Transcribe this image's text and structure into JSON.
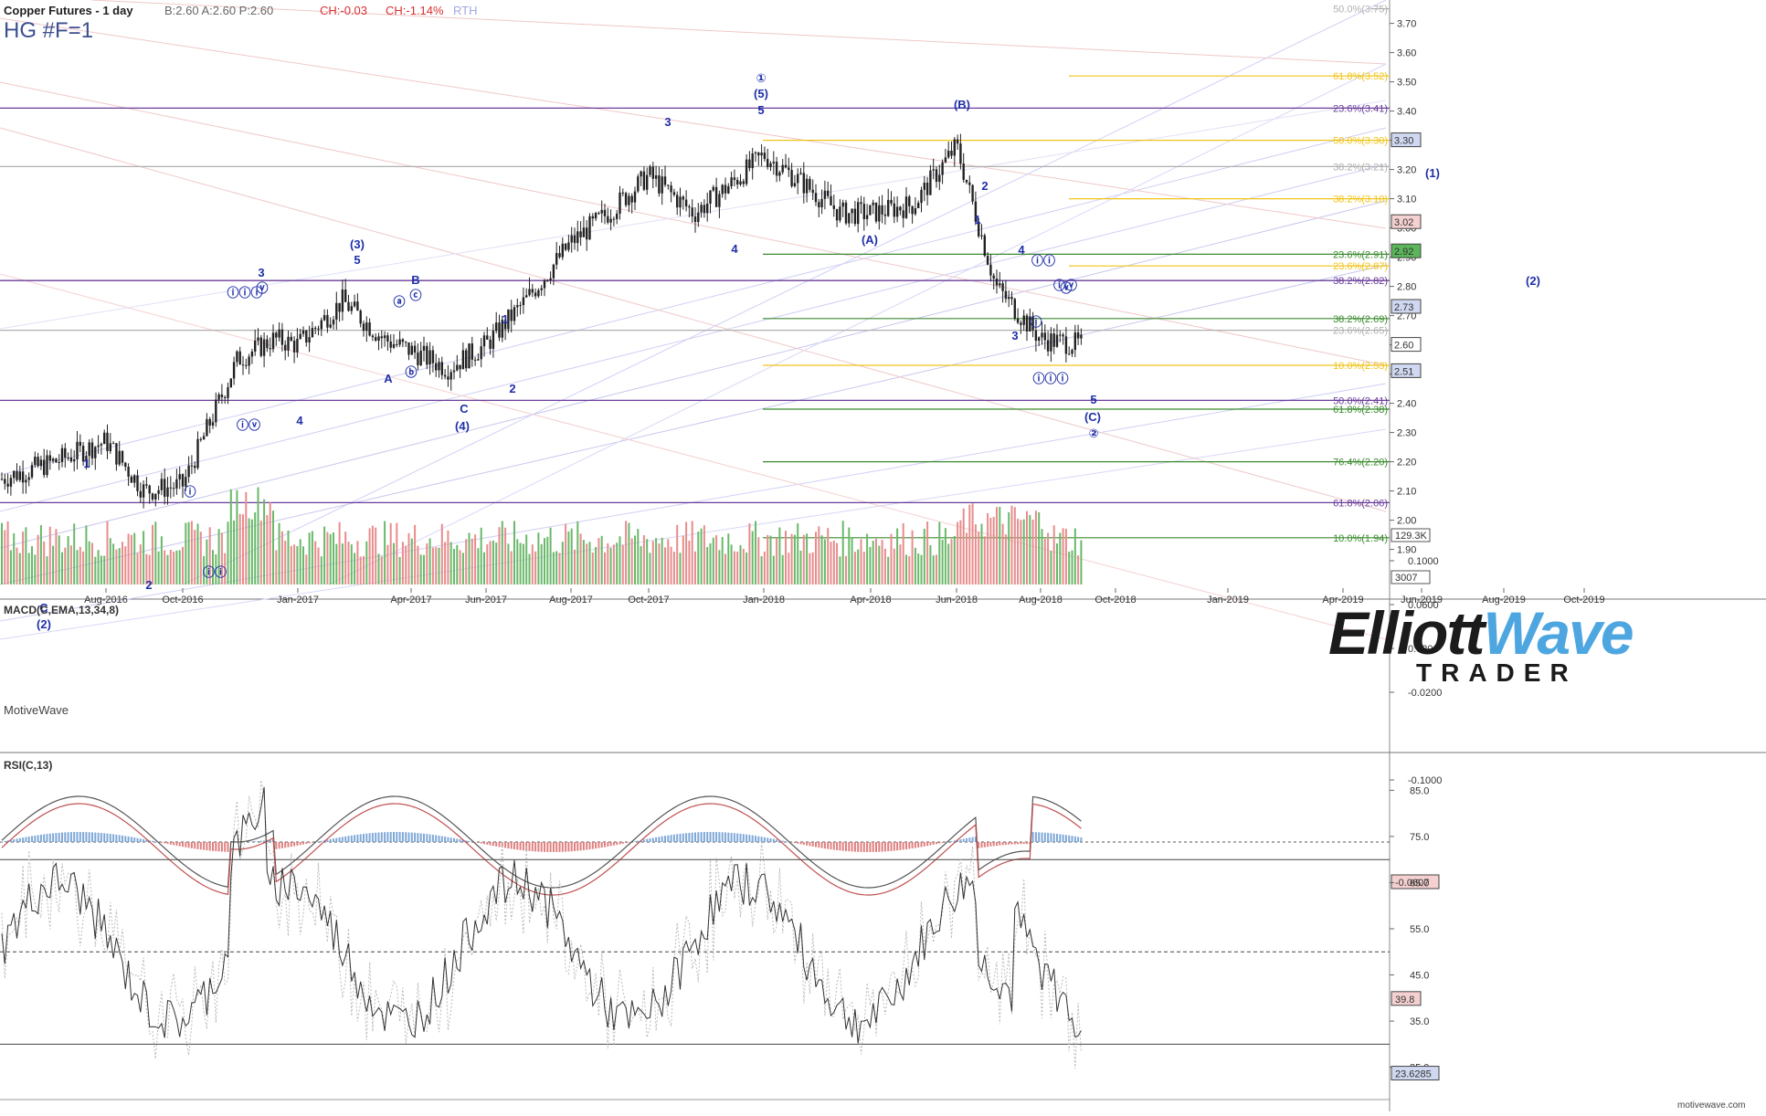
{
  "header": {
    "title": "Copper Futures - 1 day",
    "quote": "B:2.60  A:2.60  P:2.60",
    "change_abs": "CH:-0.03",
    "change_pct": "CH:-1.14%",
    "session": "RTH",
    "ticker": "HG #F=1"
  },
  "brand": {
    "platform": "MotiveWave",
    "footer_url": "motivewave.com",
    "logo_word_a": "Elliott",
    "logo_word_b": "Wave",
    "logo_sub": "TRADER"
  },
  "colors": {
    "up_bar": "#222222",
    "vol_up": "#6ab86a",
    "vol_down": "#e88c8c",
    "fib_green": "#3b8a2f",
    "fib_yellow": "#f0c419",
    "fib_purple": "#6a3d9a",
    "label_blue": "#1f2fa8",
    "macd_line": "#555555",
    "macd_signal": "#c05050"
  },
  "chart_data": [
    {
      "type": "line",
      "panel": "price",
      "title": "Copper Futures - 1 day",
      "ylim": [
        1.78,
        3.78
      ],
      "y_ticks": [
        "3.70",
        "3.60",
        "3.50",
        "3.40",
        "3.30",
        "3.20",
        "3.10",
        "3.00",
        "2.90",
        "2.80",
        "2.70",
        "2.60",
        "2.50",
        "2.40",
        "2.30",
        "2.20",
        "2.10",
        "2.00",
        "1.90"
      ],
      "x_ticks": [
        "Aug-2016",
        "Oct-2016",
        "Jan-2017",
        "Apr-2017",
        "Jun-2017",
        "Aug-2017",
        "Oct-2017",
        "Jan-2018",
        "Apr-2018",
        "Jun-2018",
        "Aug-2018",
        "Oct-2018",
        "Jan-2019",
        "Apr-2019",
        "Jun-2019",
        "Aug-2019",
        "Oct-2019"
      ],
      "series": [
        {
          "x": [
            "Jun-2016",
            "Jul-2016",
            "Aug-2016",
            "Sep-2016",
            "Oct-2016",
            "Nov-2016",
            "Dec-2016",
            "Jan-2017",
            "Feb-2017",
            "Mar-2017",
            "Apr-2017",
            "May-2017",
            "Jun-2017",
            "Jul-2017",
            "Aug-2017",
            "Sep-2017",
            "Oct-2017",
            "Nov-2017",
            "Dec-2017",
            "Jan-2018",
            "Feb-2018",
            "Mar-2018",
            "Apr-2018",
            "May-2018",
            "Jun-2018",
            "Jul-2018",
            "Aug-2018",
            "Sep-2018"
          ],
          "values": [
            2.14,
            2.2,
            2.27,
            2.1,
            2.12,
            2.55,
            2.62,
            2.6,
            2.75,
            2.62,
            2.58,
            2.52,
            2.6,
            2.75,
            2.95,
            3.05,
            3.18,
            3.05,
            3.15,
            3.25,
            3.15,
            3.05,
            3.05,
            3.08,
            3.28,
            2.8,
            2.62,
            2.6
          ]
        }
      ],
      "volume_axis": [
        "129.3K",
        "3007"
      ],
      "price_tags": [
        "3.30",
        "3.02",
        "2.92",
        "2.73",
        "2.60",
        "2.51"
      ],
      "fib_levels": [
        {
          "label": "50.0%(3.75)",
          "color": "#b0b0b0"
        },
        {
          "label": "61.8%(3.52)",
          "color": "#f0c419"
        },
        {
          "label": "23.6%(3.41)",
          "color": "#6a3d9a"
        },
        {
          "label": "50.0%(3.30)",
          "color": "#f0c419"
        },
        {
          "label": "38.2%(3.21)",
          "color": "#b0b0b0"
        },
        {
          "label": "38.2%(3.10)",
          "color": "#f0c419"
        },
        {
          "label": "23.6%(2.91)",
          "color": "#3b8a2f"
        },
        {
          "label": "23.6%(2.87)",
          "color": "#f0c419"
        },
        {
          "label": "38.2%(2.82)",
          "color": "#6a3d9a"
        },
        {
          "label": "38.2%(2.69)",
          "color": "#3b8a2f"
        },
        {
          "label": "23.6%(2.65)",
          "color": "#b0b0b0"
        },
        {
          "label": "10.0%(2.53)",
          "color": "#f0c419"
        },
        {
          "label": "50.0%(2.41)",
          "color": "#6a3d9a"
        },
        {
          "label": "61.8%(2.38)",
          "color": "#3b8a2f"
        },
        {
          "label": "76.4%(2.20)",
          "color": "#3b8a2f"
        },
        {
          "label": "61.8%(2.06)",
          "color": "#6a3d9a"
        },
        {
          "label": "10.0%(1.94)",
          "color": "#3b8a2f"
        }
      ],
      "wave_labels": [
        "(2)",
        "C",
        "1",
        "2",
        "ⓘ",
        "ⓘⓘ",
        "ⓘⓘⓘ",
        "ⓥ",
        "ⓘⓥ",
        "3",
        "4",
        "(3)",
        "5",
        "ⓐ",
        "ⓑ",
        "ⓒ",
        "A",
        "B",
        "C",
        "(4)",
        "1",
        "2",
        "3",
        "4",
        "①",
        "(5)",
        "5",
        "(A)",
        "(B)",
        "1",
        "2",
        "3",
        "4",
        "ⓘ",
        "ⓘⓘ",
        "ⓘⓘⓘ",
        "ⓘⓥ",
        "ⓥ",
        "5",
        "(C)",
        "②",
        "(1)",
        "(2)"
      ]
    },
    {
      "type": "line",
      "panel": "macd",
      "title": "MACD(C,EMA,13,34,8)",
      "y_ticks": [
        "0.1000",
        "0.0600",
        "0.0200",
        "-0.0200",
        "-0.1000"
      ],
      "last_value_tag": "-0.0607"
    },
    {
      "type": "line",
      "panel": "rsi",
      "title": "RSI(C,13)",
      "y_ticks": [
        "85.0",
        "75.0",
        "65.0",
        "55.0",
        "45.0",
        "35.0",
        "25.0"
      ],
      "last_value_tag": "39.8",
      "second_value_tag": "23.6285"
    }
  ]
}
